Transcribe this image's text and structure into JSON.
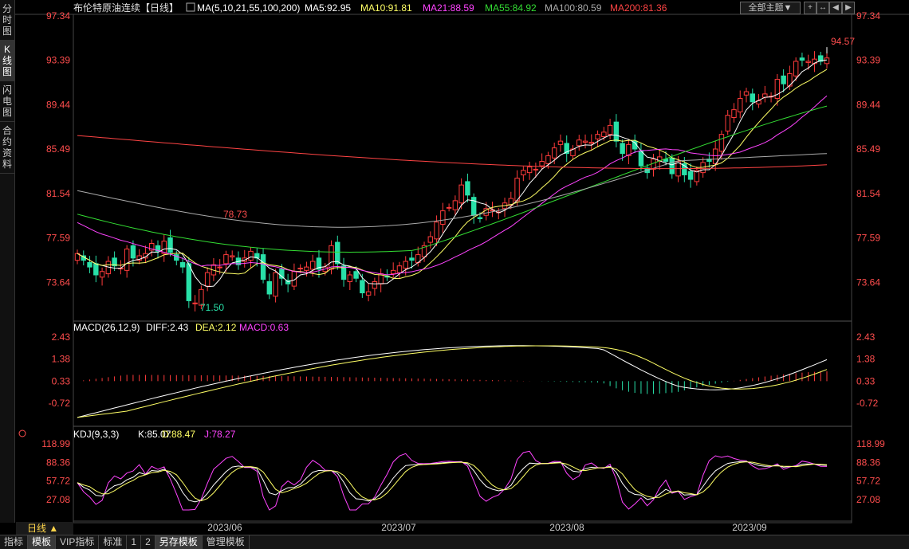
{
  "sidebar": {
    "tabs": [
      "分时图",
      "K线图",
      "闪电图",
      "合约资料"
    ],
    "active": 1
  },
  "header": {
    "title": "布伦特原油连续【日线】",
    "ma_params": "MA(5,10,21,55,100,200)",
    "ma_values": [
      {
        "label": "MA5:92.95",
        "color": "#ffffff"
      },
      {
        "label": "MA10:91.81",
        "color": "#ffff66"
      },
      {
        "label": "MA21:88.59",
        "color": "#ff44ff"
      },
      {
        "label": "MA55:84.92",
        "color": "#33dd33"
      },
      {
        "label": "MA100:80.59",
        "color": "#aaaaaa"
      },
      {
        "label": "MA200:81.36",
        "color": "#ff4444"
      }
    ],
    "theme_dropdown": "全部主题▼"
  },
  "toolbar_icons": [
    "crosshair-icon",
    "expand-icon",
    "prev-icon",
    "next-icon",
    "panel-icon"
  ],
  "price_axis": {
    "ticks": [
      "97.34",
      "93.39",
      "89.44",
      "85.49",
      "81.54",
      "77.59",
      "73.64"
    ],
    "min": 70.4,
    "max": 97.34
  },
  "annotations": {
    "high": "94.57",
    "local_high": "78.73",
    "low": "71.50"
  },
  "macd": {
    "title": "MACD(26,12,9)",
    "diff": "DIFF:2.43",
    "dea": "DEA:2.12",
    "macd": "MACD:0.63",
    "ticks": [
      "2.43",
      "1.38",
      "0.33",
      "-0.72"
    ]
  },
  "kdj": {
    "title": "KDJ(9,3,3)",
    "k": "K:85.07",
    "d": "D:88.47",
    "j": "J:78.27",
    "ticks": [
      "118.99",
      "88.36",
      "57.72",
      "27.08"
    ]
  },
  "x_axis": [
    "2023/06",
    "2023/07",
    "2023/08",
    "2023/09"
  ],
  "period": "日线 ▲",
  "bottom_tabs": [
    "指标",
    "模板",
    "VIP指标",
    "标准",
    "1",
    "2",
    "另存模板",
    "管理模板"
  ],
  "colors": {
    "up": "#ff3b3b",
    "down": "#28e0a8",
    "ma5": "#ffffff",
    "ma10": "#ffff66",
    "ma21": "#ff44ff",
    "ma55": "#33dd33",
    "ma100": "#aaaaaa",
    "ma200": "#ff4444"
  },
  "chart_data": {
    "type": "candlestick",
    "title": "布伦特原油连续【日线】",
    "closes": [
      76.2,
      75.6,
      75.0,
      74.3,
      74.6,
      75.5,
      75.1,
      74.9,
      76.6,
      75.8,
      76.0,
      76.2,
      77.1,
      76.4,
      77.3,
      76.3,
      75.6,
      75.0,
      72.0,
      71.8,
      73.0,
      74.5,
      75.2,
      75.0,
      76.1,
      76.0,
      75.2,
      75.8,
      76.4,
      75.8,
      73.9,
      72.6,
      74.5,
      74.0,
      73.5,
      74.6,
      74.9,
      75.0,
      75.5,
      74.8,
      75.0,
      76.9,
      75.3,
      73.9,
      74.3,
      74.0,
      72.7,
      72.8,
      73.7,
      74.4,
      74.1,
      74.7,
      75.1,
      75.5,
      75.6,
      76.1,
      76.9,
      77.7,
      79.0,
      80.0,
      80.3,
      80.9,
      82.3,
      81.4,
      79.6,
      79.3,
      80.2,
      80.1,
      79.9,
      80.7,
      81.1,
      82.9,
      83.6,
      83.9,
      83.7,
      84.4,
      84.9,
      85.6,
      86.2,
      85.1,
      85.5,
      86.3,
      86.2,
      86.1,
      86.8,
      87.0,
      87.6,
      86.2,
      85.1,
      85.9,
      85.5,
      84.0,
      83.4,
      84.6,
      84.8,
      84.4,
      83.3,
      84.4,
      83.2,
      82.8,
      83.6,
      84.3,
      84.4,
      85.5,
      86.8,
      88.5,
      89.0,
      90.0,
      90.6,
      89.7,
      89.8,
      90.4,
      90.2,
      91.7,
      91.3,
      92.2,
      93.3,
      93.4,
      93.3,
      93.5,
      93.3,
      93.6
    ],
    "ma": {
      "labels": [
        "MA5",
        "MA10",
        "MA21",
        "MA55",
        "MA100",
        "MA200"
      ],
      "values": [
        92.95,
        91.81,
        88.59,
        84.92,
        80.59,
        81.36
      ]
    },
    "x_ticks": [
      "2023/06",
      "2023/07",
      "2023/08",
      "2023/09"
    ],
    "y_ticks": [
      97.34,
      93.39,
      89.44,
      85.49,
      81.54,
      77.59,
      73.64
    ],
    "labeled_points": {
      "high": 94.57,
      "local_high": 78.73,
      "low": 71.5
    }
  }
}
